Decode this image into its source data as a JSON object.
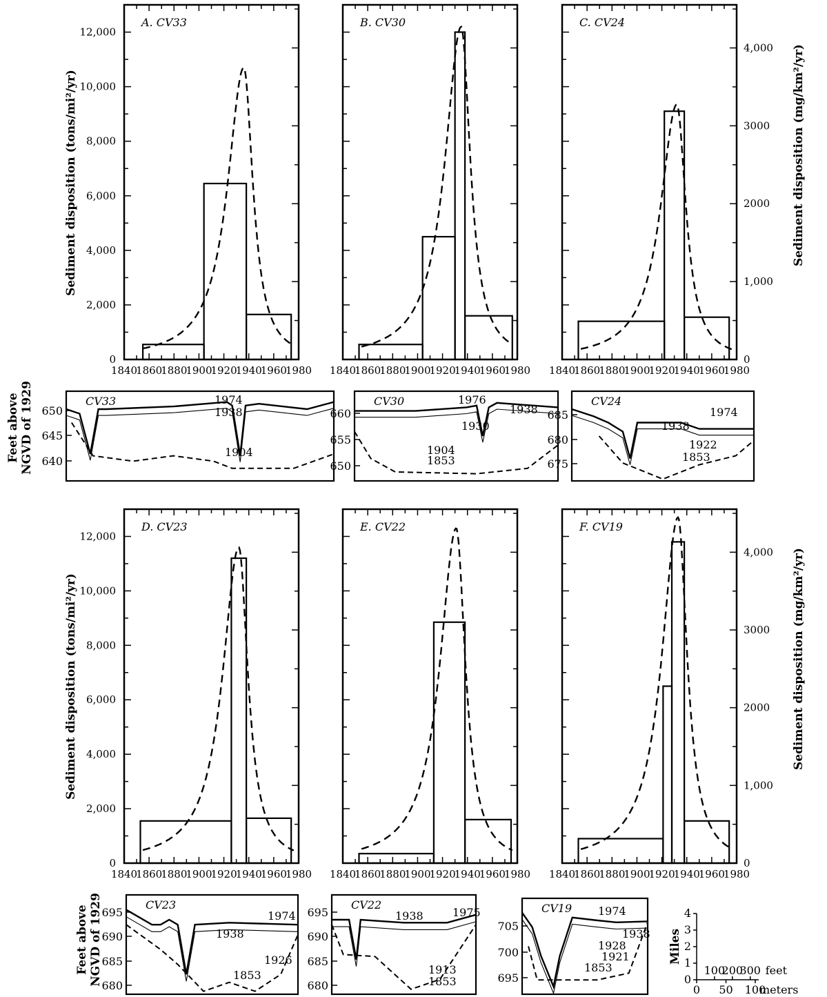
{
  "figure": {
    "left_axis_title": "Sediment disposition (tons/mi²/yr)",
    "right_axis_title": "Sediment disposition (mg/km²/yr)",
    "xs_axis_title_line1": "Feet above",
    "xs_axis_title_line2": "NGVD of 1929",
    "left_ticks": [
      "0",
      "2,000",
      "4,000",
      "6,000",
      "8,000",
      "10,000",
      "12,000"
    ],
    "right_ticks": [
      "0",
      "1,000",
      "2000",
      "3000",
      "4,000"
    ],
    "x_ticks": [
      "1840",
      "1860",
      "1880",
      "1900",
      "1920",
      "1940",
      "1960",
      "1980"
    ]
  },
  "chart_data": [
    {
      "id": "A",
      "type": "bar",
      "title": "A. CV33",
      "xlim": [
        1840,
        1980
      ],
      "ylim": [
        0,
        13000
      ],
      "bars": [
        {
          "x0": 1855,
          "x1": 1904,
          "value": 550
        },
        {
          "x0": 1904,
          "x1": 1938,
          "value": 6450
        },
        {
          "x0": 1938,
          "x1": 1974,
          "value": 1650
        }
      ],
      "curve_peak": {
        "x": 1936,
        "y": 10700
      }
    },
    {
      "id": "B",
      "type": "bar",
      "title": "B. CV30",
      "xlim": [
        1840,
        1980
      ],
      "ylim": [
        0,
        13000
      ],
      "bars": [
        {
          "x0": 1853,
          "x1": 1904,
          "value": 550
        },
        {
          "x0": 1904,
          "x1": 1930,
          "value": 4500
        },
        {
          "x0": 1930,
          "x1": 1938,
          "value": 12000
        },
        {
          "x0": 1938,
          "x1": 1976,
          "value": 1600
        }
      ],
      "curve_peak": {
        "x": 1935,
        "y": 12200
      }
    },
    {
      "id": "C",
      "type": "bar",
      "title": "C. CV24",
      "xlim": [
        1840,
        1980
      ],
      "ylim": [
        0,
        13000
      ],
      "bars": [
        {
          "x0": 1853,
          "x1": 1922,
          "value": 1400
        },
        {
          "x0": 1922,
          "x1": 1938,
          "value": 9100
        },
        {
          "x0": 1938,
          "x1": 1974,
          "value": 1550
        }
      ],
      "curve_peak": {
        "x": 1932,
        "y": 9350
      }
    },
    {
      "id": "D",
      "type": "bar",
      "title": "D. CV23",
      "xlim": [
        1840,
        1980
      ],
      "ylim": [
        0,
        13000
      ],
      "bars": [
        {
          "x0": 1853,
          "x1": 1926,
          "value": 1550
        },
        {
          "x0": 1926,
          "x1": 1938,
          "value": 11200
        },
        {
          "x0": 1938,
          "x1": 1974,
          "value": 1650
        }
      ],
      "curve_peak": {
        "x": 1932,
        "y": 11600
      }
    },
    {
      "id": "E",
      "type": "bar",
      "title": "E. CV22",
      "xlim": [
        1840,
        1980
      ],
      "ylim": [
        0,
        13000
      ],
      "bars": [
        {
          "x0": 1853,
          "x1": 1913,
          "value": 350
        },
        {
          "x0": 1913,
          "x1": 1938,
          "value": 8850
        },
        {
          "x0": 1938,
          "x1": 1975,
          "value": 1600
        }
      ],
      "curve_peak": {
        "x": 1931,
        "y": 12300
      }
    },
    {
      "id": "F",
      "type": "bar",
      "title": "F. CV19",
      "xlim": [
        1840,
        1980
      ],
      "ylim": [
        0,
        13000
      ],
      "bars": [
        {
          "x0": 1853,
          "x1": 1921,
          "value": 900
        },
        {
          "x0": 1921,
          "x1": 1928,
          "value": 6500
        },
        {
          "x0": 1928,
          "x1": 1938,
          "value": 11800
        },
        {
          "x0": 1938,
          "x1": 1974,
          "value": 1550
        }
      ],
      "curve_peak": {
        "x": 1933,
        "y": 12700
      }
    }
  ],
  "cross_sections": [
    {
      "id": "CV33",
      "label": "CV33",
      "ticks": [
        "650",
        "645",
        "640"
      ],
      "years": [
        "1974",
        "1938",
        "1904"
      ]
    },
    {
      "id": "CV30",
      "label": "CV30",
      "ticks": [
        "660",
        "655",
        "650"
      ],
      "years": [
        "1976",
        "1938",
        "1930",
        "1904",
        "1853"
      ]
    },
    {
      "id": "CV24",
      "label": "CV24",
      "ticks": [
        "685",
        "680",
        "675"
      ],
      "years": [
        "1974",
        "1938",
        "1922",
        "1853"
      ]
    },
    {
      "id": "CV23",
      "label": "CV23",
      "ticks": [
        "695",
        "690",
        "685",
        "680"
      ],
      "years": [
        "1974",
        "1938",
        "1926",
        "1853"
      ]
    },
    {
      "id": "CV22",
      "label": "CV22",
      "ticks": [
        "695",
        "690",
        "685",
        "680"
      ],
      "years": [
        "1938",
        "1975",
        "1913",
        "1853"
      ]
    },
    {
      "id": "CV19",
      "label": "CV19",
      "ticks": [
        "705",
        "700",
        "695"
      ],
      "years": [
        "1974",
        "1938",
        "1928",
        "1921",
        "1853"
      ]
    }
  ],
  "scale": {
    "axis_label": "Miles",
    "y_ticks": [
      "4",
      "3",
      "2",
      "1",
      "0"
    ],
    "feet_ticks": [
      "100",
      "200",
      "300"
    ],
    "feet_unit": "feet",
    "meter_ticks": [
      "0",
      "50",
      "100"
    ],
    "meter_unit": "meters"
  }
}
